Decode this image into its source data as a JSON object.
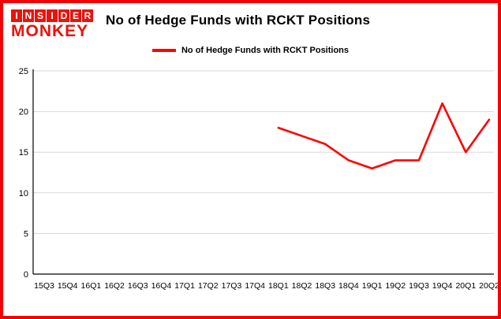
{
  "logo": {
    "line1": "INSIDER",
    "line2": "MONKEY"
  },
  "title": "No of Hedge Funds with RCKT Positions",
  "legend": {
    "label": "No of Hedge Funds with RCKT Positions"
  },
  "colors": {
    "border_red": "#f40000",
    "logo_red": "#e8140c",
    "line_red": "#ff0000",
    "grid_gray": "#d9d9d9",
    "axis_black": "#000000"
  },
  "chart_data": {
    "type": "line",
    "title": "No of Hedge Funds with RCKT Positions",
    "xlabel": "",
    "ylabel": "",
    "ylim": [
      0,
      25
    ],
    "yticks": [
      0,
      5,
      10,
      15,
      20,
      25
    ],
    "grid": true,
    "legend_position": "top",
    "categories": [
      "15Q3",
      "15Q4",
      "16Q1",
      "16Q2",
      "16Q3",
      "16Q4",
      "17Q1",
      "17Q2",
      "17Q3",
      "17Q4",
      "18Q1",
      "18Q2",
      "18Q3",
      "18Q4",
      "19Q1",
      "19Q2",
      "19Q3",
      "19Q4",
      "20Q1",
      "20Q2"
    ],
    "series": [
      {
        "name": "No of Hedge Funds with RCKT Positions",
        "color": "#ff0000",
        "values": [
          null,
          null,
          null,
          null,
          null,
          null,
          null,
          null,
          null,
          null,
          18,
          17,
          16,
          14,
          13,
          14,
          14,
          21,
          15,
          19
        ]
      }
    ]
  }
}
